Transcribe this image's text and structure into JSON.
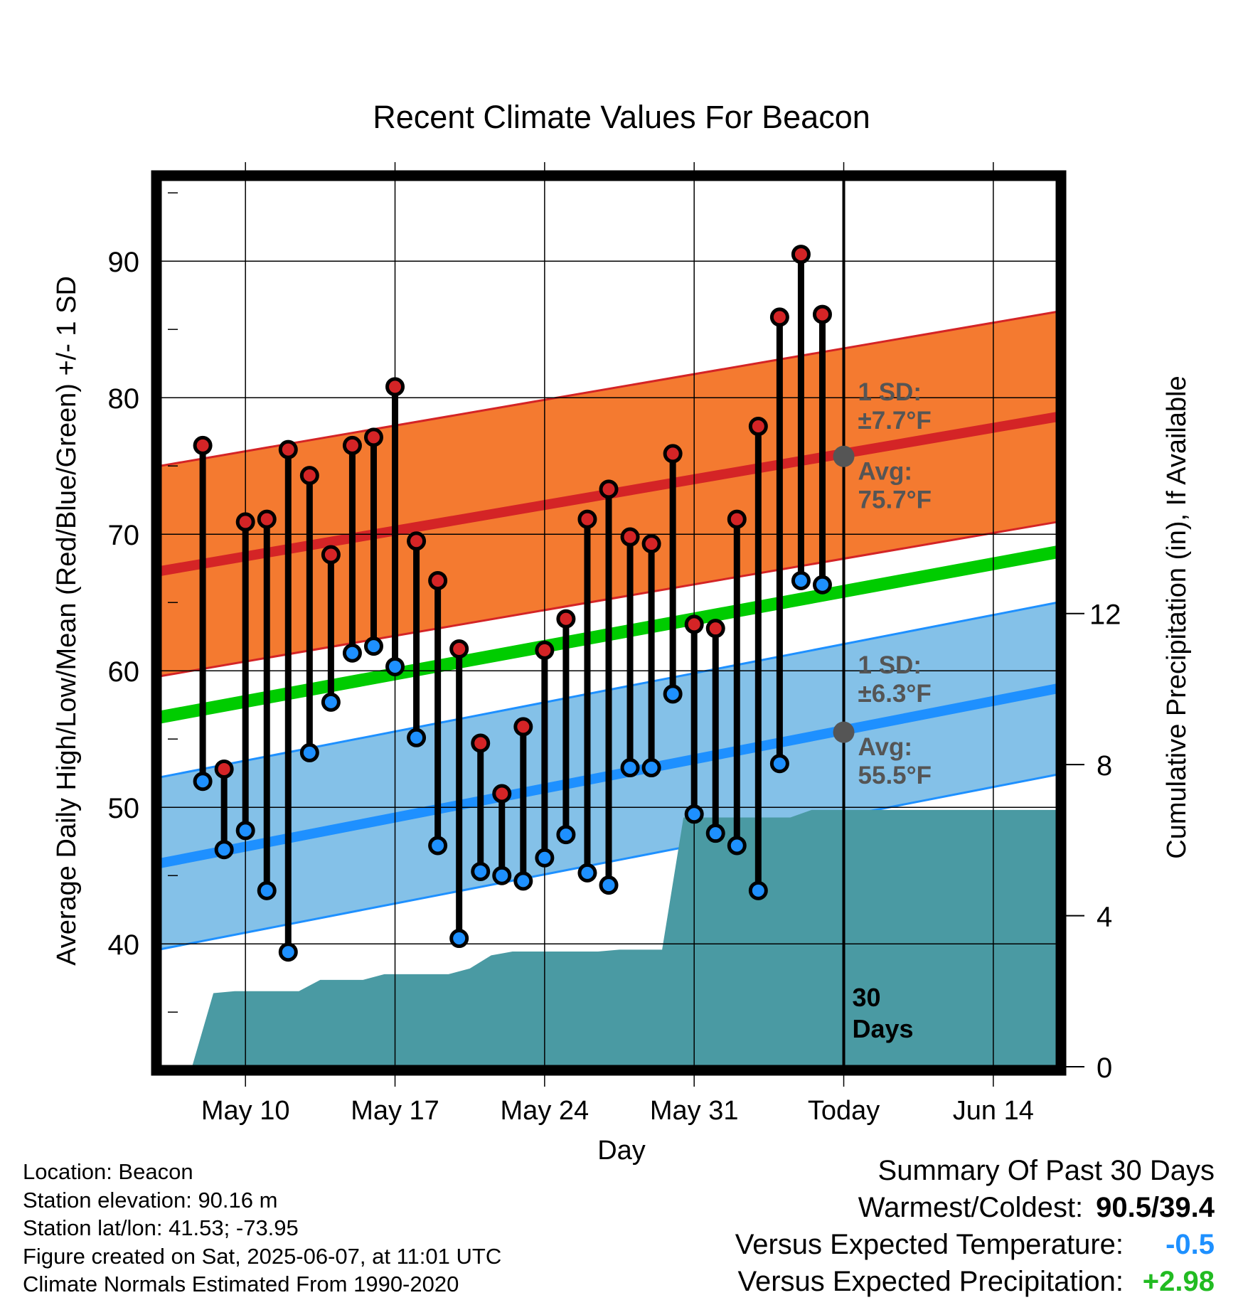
{
  "chart_data": {
    "type": "line",
    "title": "Recent Climate Values For Beacon",
    "xlabel": "Day",
    "ylabel": "Average Daily High/Low/Mean (Red/Blue/Green) +/- 1 SD",
    "y2label": "Cumulative Precipitation (in), If Available",
    "xlim": [
      "2025-05-06",
      "2025-06-17"
    ],
    "ylim": [
      31,
      96
    ],
    "y2lim": [
      0,
      23.5
    ],
    "x_ticks": [
      {
        "date": "2025-05-10",
        "label": "May 10"
      },
      {
        "date": "2025-05-17",
        "label": "May 17"
      },
      {
        "date": "2025-05-24",
        "label": "May 24"
      },
      {
        "date": "2025-05-31",
        "label": "May 31"
      },
      {
        "date": "2025-06-07",
        "label": "Today"
      },
      {
        "date": "2025-06-14",
        "label": "Jun 14"
      }
    ],
    "y_ticks": [
      40,
      50,
      60,
      70,
      80,
      90
    ],
    "y2_ticks": [
      0,
      4,
      8,
      12
    ],
    "today": "2025-06-07",
    "today_label": "30\nDays",
    "grid": true,
    "normals": {
      "high_mean": [
        {
          "date": "2025-05-06",
          "value": 67.3
        },
        {
          "date": "2025-06-17",
          "value": 78.6
        }
      ],
      "high_sd": 7.7,
      "low_mean": [
        {
          "date": "2025-05-06",
          "value": 45.9
        },
        {
          "date": "2025-06-17",
          "value": 58.7
        }
      ],
      "low_sd": 6.3,
      "mean": [
        {
          "date": "2025-05-06",
          "value": 56.6
        },
        {
          "date": "2025-06-17",
          "value": 68.7
        }
      ],
      "colors": {
        "high_band": "#f47a30",
        "high_line": "#d42426",
        "low_band": "#84c1e8",
        "low_line": "#1e90ff",
        "mean_line": "#00cc00",
        "precip": "#4a9aa3"
      }
    },
    "annotations": {
      "high_sd": "1 SD:\n±7.7°F",
      "high_avg": "Avg:\n75.7°F",
      "low_sd": "1 SD:\n±6.3°F",
      "low_avg": "Avg:\n55.5°F",
      "today_high_avg": 75.7,
      "today_low_avg": 55.5
    },
    "series": [
      {
        "name": "High",
        "color": "#d42426",
        "points": [
          {
            "date": "2025-05-08",
            "value": 76.5
          },
          {
            "date": "2025-05-09",
            "value": 52.8
          },
          {
            "date": "2025-05-10",
            "value": 70.9
          },
          {
            "date": "2025-05-11",
            "value": 71.1
          },
          {
            "date": "2025-05-12",
            "value": 76.2
          },
          {
            "date": "2025-05-13",
            "value": 74.3
          },
          {
            "date": "2025-05-14",
            "value": 68.5
          },
          {
            "date": "2025-05-15",
            "value": 76.5
          },
          {
            "date": "2025-05-16",
            "value": 77.1
          },
          {
            "date": "2025-05-17",
            "value": 80.8
          },
          {
            "date": "2025-05-18",
            "value": 69.5
          },
          {
            "date": "2025-05-19",
            "value": 66.6
          },
          {
            "date": "2025-05-20",
            "value": 61.6
          },
          {
            "date": "2025-05-21",
            "value": 54.7
          },
          {
            "date": "2025-05-22",
            "value": 51.0
          },
          {
            "date": "2025-05-23",
            "value": 55.9
          },
          {
            "date": "2025-05-24",
            "value": 61.5
          },
          {
            "date": "2025-05-25",
            "value": 63.8
          },
          {
            "date": "2025-05-26",
            "value": 71.1
          },
          {
            "date": "2025-05-27",
            "value": 73.3
          },
          {
            "date": "2025-05-28",
            "value": 69.8
          },
          {
            "date": "2025-05-29",
            "value": 69.3
          },
          {
            "date": "2025-05-30",
            "value": 75.9
          },
          {
            "date": "2025-05-31",
            "value": 63.4
          },
          {
            "date": "2025-06-01",
            "value": 63.1
          },
          {
            "date": "2025-06-02",
            "value": 71.1
          },
          {
            "date": "2025-06-03",
            "value": 77.9
          },
          {
            "date": "2025-06-04",
            "value": 85.9
          },
          {
            "date": "2025-06-05",
            "value": 90.5
          },
          {
            "date": "2025-06-06",
            "value": 86.1
          }
        ]
      },
      {
        "name": "Low",
        "color": "#1e90ff",
        "points": [
          {
            "date": "2025-05-08",
            "value": 51.9
          },
          {
            "date": "2025-05-09",
            "value": 46.9
          },
          {
            "date": "2025-05-10",
            "value": 48.3
          },
          {
            "date": "2025-05-11",
            "value": 43.9
          },
          {
            "date": "2025-05-12",
            "value": 39.4
          },
          {
            "date": "2025-05-13",
            "value": 54.0
          },
          {
            "date": "2025-05-14",
            "value": 57.7
          },
          {
            "date": "2025-05-15",
            "value": 61.3
          },
          {
            "date": "2025-05-16",
            "value": 61.8
          },
          {
            "date": "2025-05-17",
            "value": 60.3
          },
          {
            "date": "2025-05-18",
            "value": 55.1
          },
          {
            "date": "2025-05-19",
            "value": 47.2
          },
          {
            "date": "2025-05-20",
            "value": 40.4
          },
          {
            "date": "2025-05-21",
            "value": 45.3
          },
          {
            "date": "2025-05-22",
            "value": 45.0
          },
          {
            "date": "2025-05-23",
            "value": 44.6
          },
          {
            "date": "2025-05-24",
            "value": 46.3
          },
          {
            "date": "2025-05-25",
            "value": 48.0
          },
          {
            "date": "2025-05-26",
            "value": 45.2
          },
          {
            "date": "2025-05-27",
            "value": 44.3
          },
          {
            "date": "2025-05-28",
            "value": 52.9
          },
          {
            "date": "2025-05-29",
            "value": 52.9
          },
          {
            "date": "2025-05-30",
            "value": 58.3
          },
          {
            "date": "2025-05-31",
            "value": 49.5
          },
          {
            "date": "2025-06-01",
            "value": 48.1
          },
          {
            "date": "2025-06-02",
            "value": 47.2
          },
          {
            "date": "2025-06-03",
            "value": 43.9
          },
          {
            "date": "2025-06-04",
            "value": 53.2
          },
          {
            "date": "2025-06-05",
            "value": 66.6
          },
          {
            "date": "2025-06-06",
            "value": 66.3
          }
        ]
      }
    ],
    "precipitation": {
      "name": "Cumulative Precipitation",
      "points": [
        {
          "date": "2025-05-06.5",
          "value": 0
        },
        {
          "date": "2025-05-07.5",
          "value": 0
        },
        {
          "date": "2025-05-08.5",
          "value": 1.95
        },
        {
          "date": "2025-05-09.5",
          "value": 2.0
        },
        {
          "date": "2025-05-10.5",
          "value": 2.0
        },
        {
          "date": "2025-05-11.5",
          "value": 2.0
        },
        {
          "date": "2025-05-12.5",
          "value": 2.0
        },
        {
          "date": "2025-05-13.5",
          "value": 2.3
        },
        {
          "date": "2025-05-14.5",
          "value": 2.3
        },
        {
          "date": "2025-05-15.5",
          "value": 2.3
        },
        {
          "date": "2025-05-16.5",
          "value": 2.45
        },
        {
          "date": "2025-05-17.5",
          "value": 2.45
        },
        {
          "date": "2025-05-18.5",
          "value": 2.45
        },
        {
          "date": "2025-05-19.5",
          "value": 2.45
        },
        {
          "date": "2025-05-20.5",
          "value": 2.6
        },
        {
          "date": "2025-05-21.5",
          "value": 2.95
        },
        {
          "date": "2025-05-22.5",
          "value": 3.05
        },
        {
          "date": "2025-05-23.5",
          "value": 3.05
        },
        {
          "date": "2025-05-24.5",
          "value": 3.05
        },
        {
          "date": "2025-05-25.5",
          "value": 3.05
        },
        {
          "date": "2025-05-26.5",
          "value": 3.05
        },
        {
          "date": "2025-05-27.5",
          "value": 3.1
        },
        {
          "date": "2025-05-28.5",
          "value": 3.1
        },
        {
          "date": "2025-05-29.5",
          "value": 3.1
        },
        {
          "date": "2025-05-30.5",
          "value": 6.6
        },
        {
          "date": "2025-05-31.5",
          "value": 6.6
        },
        {
          "date": "2025-06-01.5",
          "value": 6.6
        },
        {
          "date": "2025-06-02.5",
          "value": 6.6
        },
        {
          "date": "2025-06-03.5",
          "value": 6.6
        },
        {
          "date": "2025-06-04.5",
          "value": 6.6
        },
        {
          "date": "2025-06-05.5",
          "value": 6.8
        },
        {
          "date": "2025-06-06.5",
          "value": 6.8
        },
        {
          "date": "2025-06-17",
          "value": 6.8
        }
      ]
    }
  },
  "info": {
    "location": "Location: Beacon",
    "elevation": "Station elevation: 90.16 m",
    "latlon": "Station lat/lon: 41.53; -73.95",
    "created": "Figure created on Sat, 2025-06-07, at 11:01 UTC",
    "normals": "Climate Normals Estimated From 1990-2020"
  },
  "summary": {
    "title": "Summary Of Past 30 Days",
    "warmest_label": "Warmest/Coldest:",
    "warmest_value": "90.5/39.4",
    "temp_label": "Versus Expected Temperature:",
    "temp_value": "-0.5",
    "temp_color": "#1e90ff",
    "precip_label": "Versus Expected Precipitation:",
    "precip_value": "+2.98",
    "precip_color": "#22bb22"
  }
}
